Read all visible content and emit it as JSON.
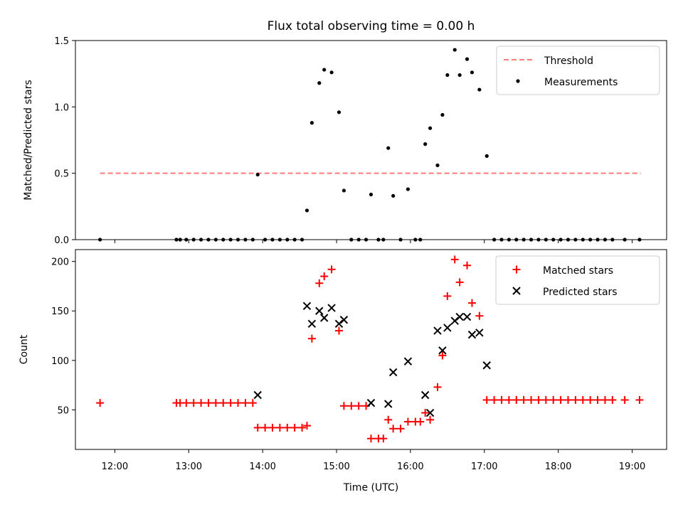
{
  "chart_data": [
    {
      "type": "scatter",
      "title": "Flux total observing time = 0.00 h",
      "xlabel": "",
      "ylabel": "Matched/Predicted stars",
      "xlim": [
        "11:28",
        "19:28"
      ],
      "ylim": [
        0,
        1.5
      ],
      "yticks": [
        "0.0",
        "0.5",
        "1.0",
        "1.5"
      ],
      "legend_position": "upper right",
      "threshold": {
        "name": "Threshold",
        "color": "#ff7b7b",
        "value": 0.5,
        "x": [
          "11:48",
          "19:07"
        ]
      },
      "series": [
        {
          "name": "Measurements",
          "color": "#000000",
          "x": [
            "11:48",
            "12:50",
            "12:53",
            "12:58",
            "13:04",
            "13:10",
            "13:16",
            "13:22",
            "13:28",
            "13:34",
            "13:40",
            "13:46",
            "13:52",
            "13:56",
            "14:02",
            "14:08",
            "14:14",
            "14:20",
            "14:26",
            "14:32",
            "14:36",
            "14:40",
            "14:46",
            "14:50",
            "14:56",
            "15:02",
            "15:06",
            "15:12",
            "15:18",
            "15:24",
            "15:28",
            "15:34",
            "15:38",
            "15:42",
            "15:46",
            "15:52",
            "15:58",
            "16:04",
            "16:08",
            "16:12",
            "16:16",
            "16:22",
            "16:26",
            "16:30",
            "16:36",
            "16:40",
            "16:46",
            "16:50",
            "16:56",
            "17:02",
            "17:08",
            "17:14",
            "17:20",
            "17:26",
            "17:32",
            "17:38",
            "17:44",
            "17:50",
            "17:56",
            "18:02",
            "18:08",
            "18:14",
            "18:20",
            "18:26",
            "18:32",
            "18:38",
            "18:44",
            "18:54",
            "19:06"
          ],
          "y": [
            0,
            0,
            0,
            0,
            0,
            0,
            0,
            0,
            0,
            0,
            0,
            0,
            0,
            0.49,
            0,
            0,
            0,
            0,
            0,
            0,
            0.22,
            0.88,
            1.18,
            1.28,
            1.26,
            0.96,
            0.37,
            0,
            0,
            0,
            0.34,
            0,
            0,
            0.69,
            0.33,
            0,
            0.38,
            0,
            0,
            0.72,
            0.84,
            0.56,
            0.94,
            1.24,
            1.43,
            1.24,
            1.36,
            1.26,
            1.13,
            0.63,
            0,
            0,
            0,
            0,
            0,
            0,
            0,
            0,
            0,
            0,
            0,
            0,
            0,
            0,
            0,
            0,
            0,
            0,
            0
          ]
        }
      ]
    },
    {
      "type": "scatter",
      "title": "",
      "xlabel": "Time (UTC)",
      "ylabel": "Count",
      "xlim": [
        "11:28",
        "19:28"
      ],
      "ylim": [
        10,
        212
      ],
      "yticks": [
        "50",
        "100",
        "150",
        "200"
      ],
      "xticks": [
        "12:00",
        "13:00",
        "14:00",
        "15:00",
        "16:00",
        "17:00",
        "18:00",
        "19:00"
      ],
      "legend_position": "upper right",
      "series": [
        {
          "name": "Matched stars",
          "color": "#ff0000",
          "marker": "+",
          "x": [
            "11:48",
            "12:50",
            "12:53",
            "12:58",
            "13:04",
            "13:10",
            "13:16",
            "13:22",
            "13:28",
            "13:34",
            "13:40",
            "13:46",
            "13:52",
            "13:56",
            "14:02",
            "14:08",
            "14:14",
            "14:20",
            "14:26",
            "14:32",
            "14:36",
            "14:40",
            "14:46",
            "14:50",
            "14:56",
            "15:02",
            "15:06",
            "15:12",
            "15:18",
            "15:24",
            "15:28",
            "15:34",
            "15:38",
            "15:42",
            "15:46",
            "15:52",
            "15:58",
            "16:04",
            "16:08",
            "16:12",
            "16:16",
            "16:22",
            "16:26",
            "16:30",
            "16:36",
            "16:40",
            "16:46",
            "16:50",
            "16:56",
            "17:02",
            "17:08",
            "17:14",
            "17:20",
            "17:26",
            "17:32",
            "17:38",
            "17:44",
            "17:50",
            "17:56",
            "18:02",
            "18:08",
            "18:14",
            "18:20",
            "18:26",
            "18:32",
            "18:38",
            "18:44",
            "18:54",
            "19:06"
          ],
          "y": [
            57,
            57,
            57,
            57,
            57,
            57,
            57,
            57,
            57,
            57,
            57,
            57,
            57,
            32,
            32,
            32,
            32,
            32,
            32,
            32,
            34,
            122,
            178,
            185,
            192,
            130,
            54,
            54,
            54,
            54,
            21,
            21,
            21,
            40,
            31,
            31,
            38,
            38,
            38,
            47,
            40,
            73,
            105,
            165,
            202,
            179,
            196,
            158,
            145,
            60,
            60,
            60,
            60,
            60,
            60,
            60,
            60,
            60,
            60,
            60,
            60,
            60,
            60,
            60,
            60,
            60,
            60,
            60,
            60
          ]
        },
        {
          "name": "Predicted stars",
          "color": "#000000",
          "marker": "x",
          "x": [
            "13:56",
            "14:36",
            "14:40",
            "14:46",
            "14:50",
            "14:56",
            "15:02",
            "15:06",
            "15:28",
            "15:42",
            "15:46",
            "15:58",
            "16:12",
            "16:16",
            "16:22",
            "16:26",
            "16:30",
            "16:36",
            "16:40",
            "16:46",
            "16:50",
            "16:56",
            "17:02"
          ],
          "y": [
            65,
            155,
            137,
            150,
            143,
            153,
            137,
            141,
            57,
            56,
            88,
            99,
            65,
            47,
            130,
            110,
            133,
            140,
            144,
            144,
            126,
            128,
            95
          ]
        }
      ]
    }
  ]
}
